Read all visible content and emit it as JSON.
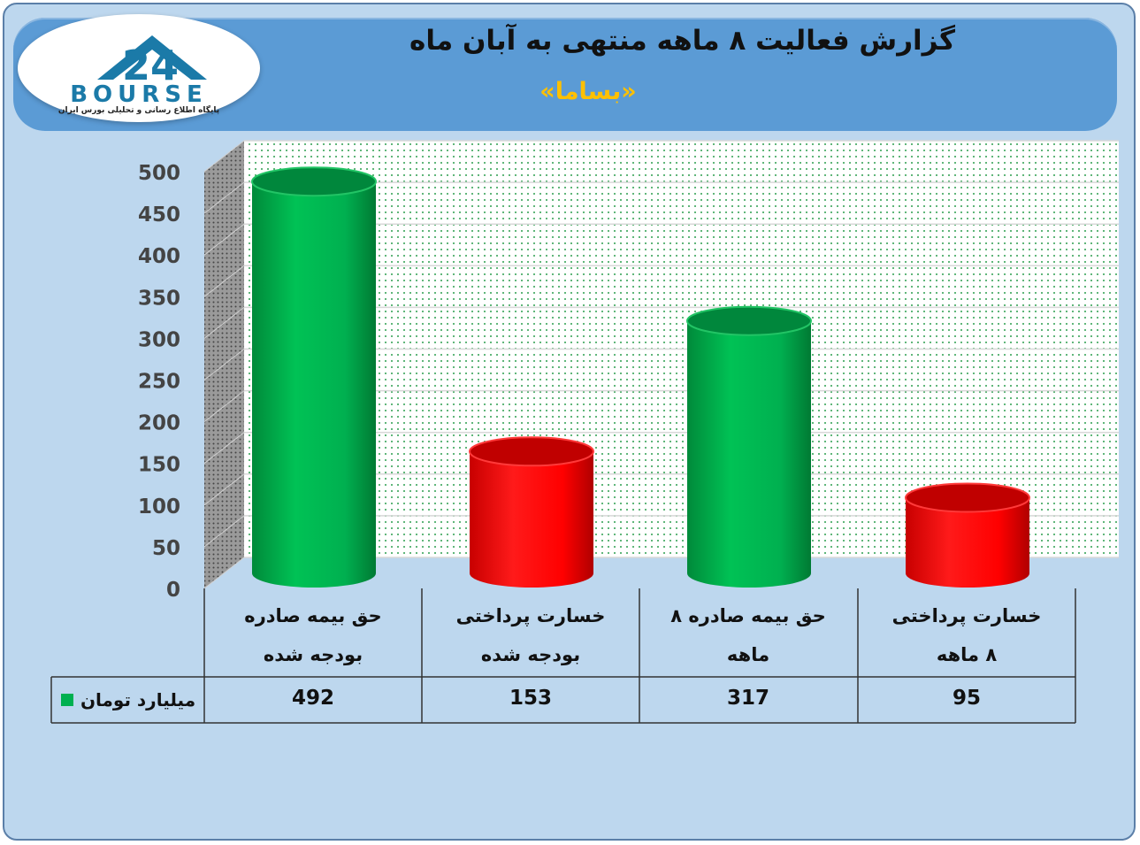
{
  "header": {
    "title": "گزارش فعالیت ۸ ماهه منتهی به آبان ماه",
    "subtitle": "«بساما»"
  },
  "logo": {
    "wordmark": "BOURSE",
    "tagline": "پایگاه اطلاع رسانی و تحلیلی بورس ایران",
    "icon": "bourse24-logo-icon"
  },
  "colors": {
    "background": "#bdd7ee",
    "banner": "#5b9bd5",
    "subtitle": "#ffc000",
    "bar_green": "#00b050",
    "bar_red": "#ff0000"
  },
  "chart_data": {
    "type": "bar",
    "title": "گزارش فعالیت ۸ ماهه منتهی به آبان ماه",
    "subtitle": "«بساما»",
    "categories": [
      [
        "حق بیمه صادره",
        "بودجه شده"
      ],
      [
        "خسارت پرداختی",
        "بودجه شده"
      ],
      [
        "حق بیمه صادره ۸",
        "ماهه"
      ],
      [
        "خسارت پرداختی",
        "۸ ماهه"
      ]
    ],
    "series": [
      {
        "name": "میلیارد تومان",
        "values": [
          492,
          153,
          317,
          95
        ]
      }
    ],
    "bar_colors": [
      "#00b050",
      "#ff0000",
      "#00b050",
      "#ff0000"
    ],
    "yticks": [
      0,
      50,
      100,
      150,
      200,
      250,
      300,
      350,
      400,
      450,
      500
    ],
    "ylim": [
      0,
      500
    ],
    "grid": true,
    "data_table": true,
    "legend_position": "table-left"
  }
}
